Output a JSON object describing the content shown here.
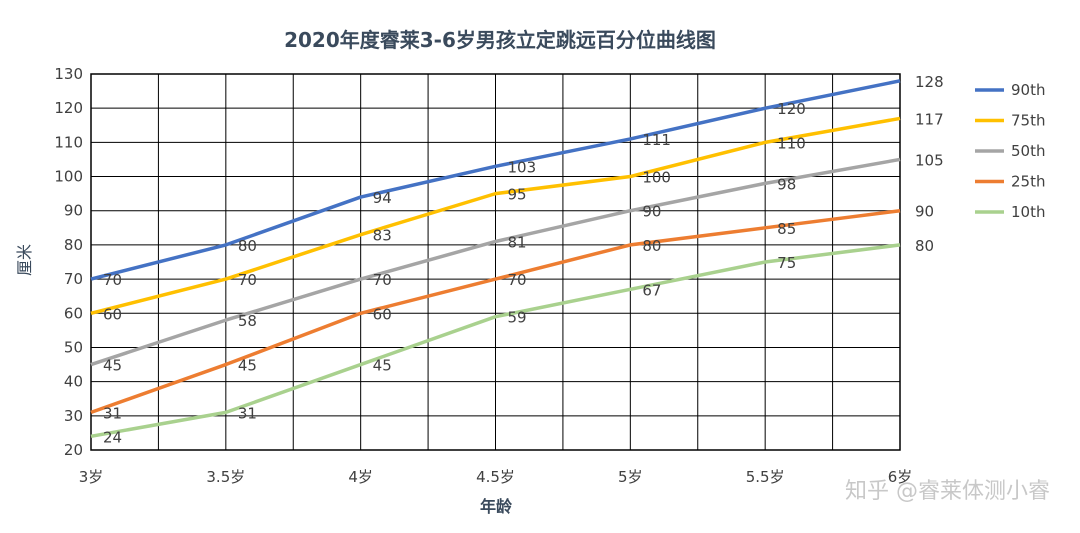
{
  "chart_data": {
    "type": "line",
    "title": "2020年度睿莱3-6岁男孩立定跳远百分位曲线图",
    "xlabel": "年龄",
    "ylabel": "厘米",
    "categories": [
      "3岁",
      "3.5岁",
      "4岁",
      "4.5岁",
      "5岁",
      "5.5岁",
      "6岁"
    ],
    "ylim": [
      20,
      130
    ],
    "yticks": [
      20,
      30,
      40,
      50,
      60,
      70,
      80,
      90,
      100,
      110,
      120,
      130
    ],
    "grid": true,
    "legend_position": "right",
    "series": [
      {
        "name": "90th",
        "color": "#4472c4",
        "values": [
          70,
          80,
          94,
          103,
          111,
          120,
          128
        ],
        "labels": [
          "70",
          "80",
          "94",
          "103",
          "111",
          "120",
          "128"
        ]
      },
      {
        "name": "75th",
        "color": "#ffc000",
        "values": [
          60,
          70,
          83,
          95,
          100,
          110,
          117
        ],
        "labels": [
          "60",
          "70",
          "83",
          "95",
          "100",
          "110",
          "117"
        ]
      },
      {
        "name": "50th",
        "color": "#a5a5a5",
        "values": [
          45,
          58,
          70,
          81,
          90,
          98,
          105
        ],
        "labels": [
          "45",
          "58",
          "70",
          "81",
          "90",
          "98",
          "105"
        ]
      },
      {
        "name": "25th",
        "color": "#ed7d31",
        "values": [
          31,
          45,
          60,
          70,
          80,
          85,
          90
        ],
        "labels": [
          "31",
          "45",
          "60",
          "70",
          "80",
          "85",
          "90"
        ]
      },
      {
        "name": "10th",
        "color": "#a9d18e",
        "values": [
          24,
          31,
          45,
          59,
          67,
          75,
          80
        ],
        "labels": [
          "24",
          "31",
          "45",
          "59",
          "67",
          "75",
          "80"
        ]
      }
    ]
  },
  "watermark": "知乎 @睿莱体测小睿"
}
